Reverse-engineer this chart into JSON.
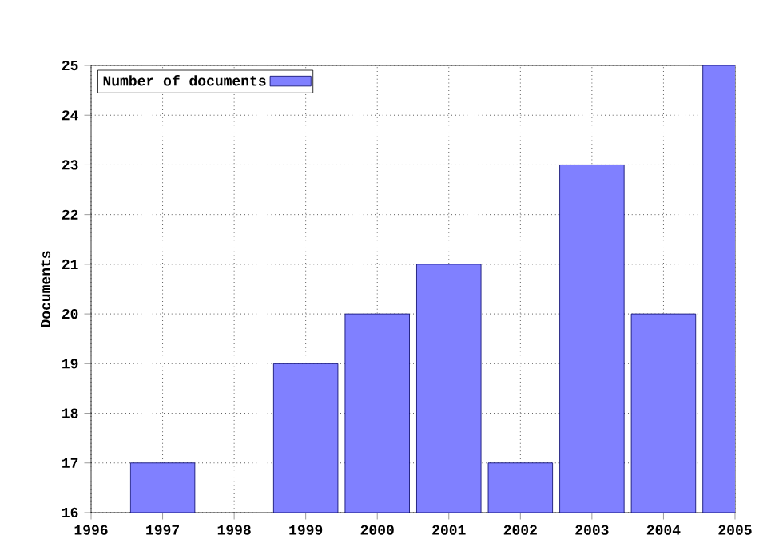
{
  "chart_data": {
    "type": "bar",
    "ylabel": "Documents",
    "x": [
      1997,
      1998,
      1999,
      2000,
      2001,
      2002,
      2003,
      2004,
      2005
    ],
    "series": [
      {
        "name": "Number of documents",
        "color": "#8080ff",
        "values": [
          17,
          null,
          19,
          20,
          21,
          17,
          23,
          20,
          25
        ]
      }
    ],
    "xlim": [
      1996,
      2005
    ],
    "xticks": [
      1996,
      1997,
      1998,
      1999,
      2000,
      2001,
      2002,
      2003,
      2004,
      2005
    ],
    "ylim": [
      16,
      25
    ],
    "yticks": [
      16,
      17,
      18,
      19,
      20,
      21,
      22,
      23,
      24,
      25
    ],
    "grid": true,
    "legend": "top left"
  }
}
